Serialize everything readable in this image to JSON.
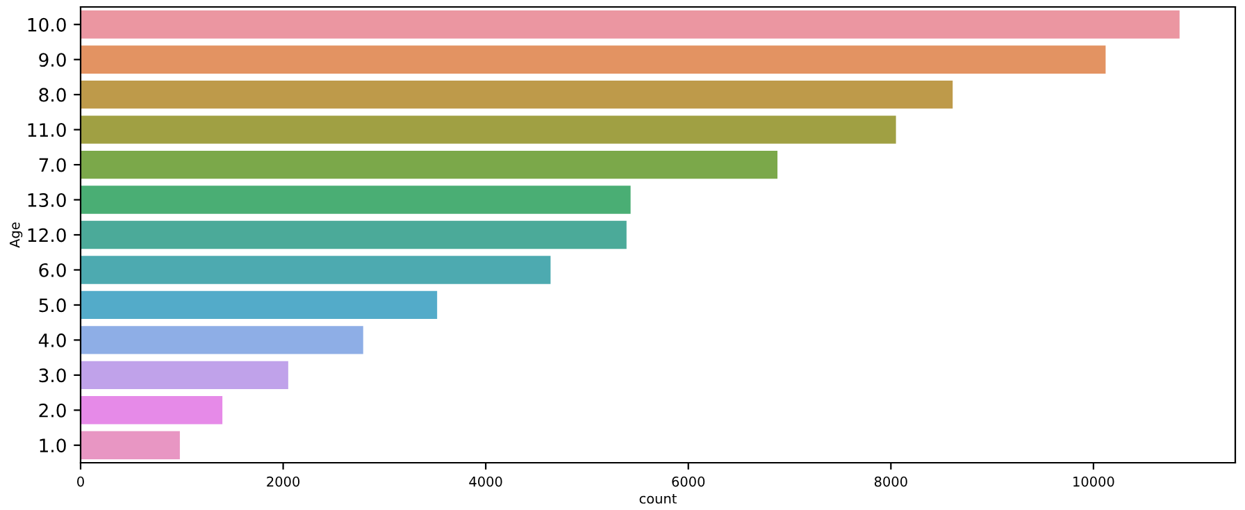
{
  "chart_data": {
    "type": "bar",
    "orientation": "horizontal",
    "xlabel": "count",
    "ylabel": "Age",
    "categories": [
      "10.0",
      "9.0",
      "8.0",
      "11.0",
      "7.0",
      "13.0",
      "12.0",
      "6.0",
      "5.0",
      "4.0",
      "3.0",
      "2.0",
      "1.0"
    ],
    "values": [
      10850,
      10120,
      8610,
      8050,
      6880,
      5430,
      5390,
      4640,
      3520,
      2790,
      2050,
      1400,
      980
    ],
    "colors": [
      "#eb96a1",
      "#e39362",
      "#be9a4a",
      "#a0a043",
      "#7ba84a",
      "#4aae74",
      "#4baa99",
      "#4daab0",
      "#53abc9",
      "#8eaee6",
      "#c0a2ea",
      "#e68ae8",
      "#e896c3"
    ],
    "xlim": [
      0,
      11400
    ],
    "xticks": [
      0,
      2000,
      4000,
      6000,
      8000,
      10000
    ],
    "grid": false,
    "legend": false
  }
}
